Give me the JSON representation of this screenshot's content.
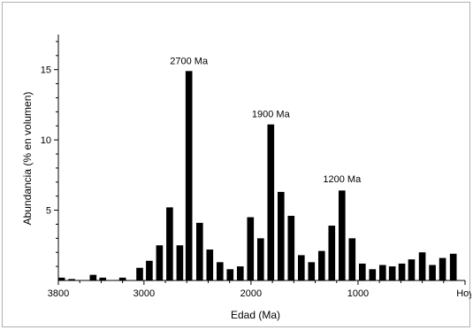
{
  "chart_data": {
    "type": "bar",
    "title": "",
    "xlabel": "Edad (Ma)",
    "ylabel": "Abundancia (% en volumen)",
    "xlim": [
      3800,
      0
    ],
    "ylim": [
      0,
      17.5
    ],
    "x_ticks": [
      {
        "value": 3800,
        "label": "3800"
      },
      {
        "value": 3000,
        "label": "3000"
      },
      {
        "value": 2000,
        "label": "2000"
      },
      {
        "value": 1000,
        "label": "1000"
      },
      {
        "value": 0,
        "label": "Hoy"
      }
    ],
    "y_ticks": [
      5,
      10,
      15
    ],
    "bar_width_ma": 63,
    "bars": [
      {
        "x": 3770,
        "value": 0.2
      },
      {
        "x": 3675,
        "value": 0.1
      },
      {
        "x": 3475,
        "value": 0.4
      },
      {
        "x": 3385,
        "value": 0.2
      },
      {
        "x": 3200,
        "value": 0.2
      },
      {
        "x": 3040,
        "value": 0.9
      },
      {
        "x": 2950,
        "value": 1.4
      },
      {
        "x": 2855,
        "value": 2.5
      },
      {
        "x": 2760,
        "value": 5.2
      },
      {
        "x": 2665,
        "value": 2.5
      },
      {
        "x": 2580,
        "value": 14.9
      },
      {
        "x": 2480,
        "value": 4.1
      },
      {
        "x": 2385,
        "value": 2.2
      },
      {
        "x": 2290,
        "value": 1.3
      },
      {
        "x": 2195,
        "value": 0.8
      },
      {
        "x": 2100,
        "value": 1.0
      },
      {
        "x": 2005,
        "value": 4.5
      },
      {
        "x": 1910,
        "value": 3.0
      },
      {
        "x": 1815,
        "value": 11.1
      },
      {
        "x": 1720,
        "value": 6.3
      },
      {
        "x": 1625,
        "value": 4.6
      },
      {
        "x": 1530,
        "value": 1.8
      },
      {
        "x": 1435,
        "value": 1.3
      },
      {
        "x": 1340,
        "value": 2.1
      },
      {
        "x": 1245,
        "value": 3.9
      },
      {
        "x": 1150,
        "value": 6.4
      },
      {
        "x": 1055,
        "value": 3.0
      },
      {
        "x": 960,
        "value": 1.2
      },
      {
        "x": 865,
        "value": 0.8
      },
      {
        "x": 770,
        "value": 1.1
      },
      {
        "x": 680,
        "value": 1.0
      },
      {
        "x": 590,
        "value": 1.2
      },
      {
        "x": 500,
        "value": 1.5
      },
      {
        "x": 400,
        "value": 2.0
      },
      {
        "x": 305,
        "value": 1.1
      },
      {
        "x": 210,
        "value": 1.6
      },
      {
        "x": 110,
        "value": 1.9
      }
    ],
    "annotations": [
      {
        "text": "2700 Ma",
        "x": 2580,
        "y": 15.4
      },
      {
        "text": "1900 Ma",
        "x": 1815,
        "y": 11.6
      },
      {
        "text": "1200 Ma",
        "x": 1150,
        "y": 7.0
      }
    ],
    "grid": false,
    "legend": "none"
  }
}
